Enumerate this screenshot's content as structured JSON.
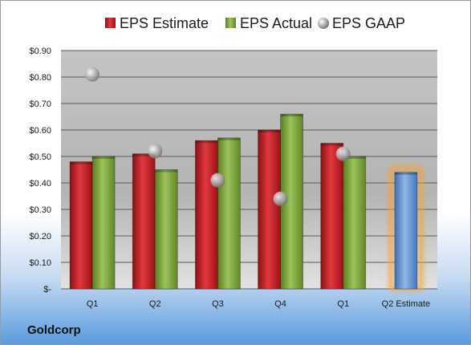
{
  "company": "Goldcorp",
  "chart_data": {
    "type": "bar",
    "categories": [
      "Q1",
      "Q2",
      "Q3",
      "Q4",
      "Q1",
      "Q2 Estimate"
    ],
    "series": [
      {
        "name": "EPS Estimate",
        "type": "bar",
        "color": "#c0181e",
        "values": [
          0.48,
          0.51,
          0.56,
          0.6,
          0.55,
          null
        ]
      },
      {
        "name": "EPS Actual",
        "type": "bar",
        "color": "#7ea53a",
        "values": [
          0.5,
          0.45,
          0.57,
          0.66,
          0.5,
          null
        ]
      },
      {
        "name": "EPS GAAP",
        "type": "scatter",
        "color": "#a8a8a8",
        "values": [
          0.81,
          0.52,
          0.41,
          0.34,
          0.51,
          null
        ]
      },
      {
        "name": "",
        "type": "bar",
        "color": "#5f8fd0",
        "highlight": "#f5a23a",
        "values": [
          null,
          null,
          null,
          null,
          null,
          0.44
        ]
      }
    ],
    "yticks": [
      "$0.90",
      "$0.80",
      "$0.70",
      "$0.60",
      "$0.50",
      "$0.40",
      "$0.30",
      "$0.20",
      "$0.10",
      "$-"
    ],
    "ylim": [
      0,
      0.9
    ],
    "legend_position": "top",
    "grid": true
  }
}
